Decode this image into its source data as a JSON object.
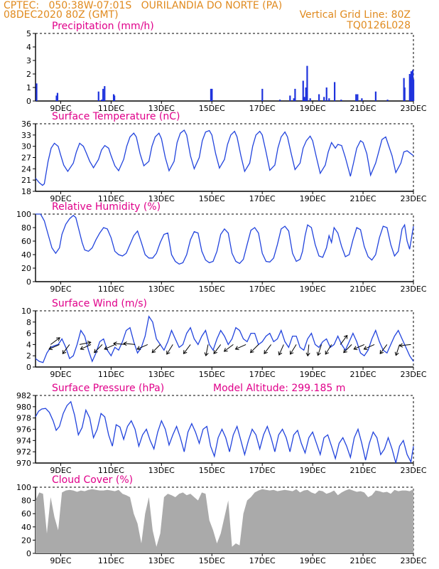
{
  "header": {
    "left_line1": "CPTEC:   050:38W-07:01S   OURILANDIA DO NORTE (PA)",
    "left_line2": "08DEC2020 80Z (GMT)",
    "right_line1": "Vertical Grid Line: 80Z",
    "right_line2": "TQ0126L028"
  },
  "colors": {
    "header": "#e08a1e",
    "title": "#e0008a",
    "series": "#2244dd",
    "bars": "#1f33dd",
    "cloud": "#aaaaaa",
    "wind_arrow": "#000000"
  },
  "x_axis": {
    "tick_labels": [
      "9DEC",
      "11DEC",
      "13DEC",
      "15DEC",
      "17DEC",
      "19DEC",
      "21DEC",
      "23DEC"
    ],
    "tick_days": [
      9,
      11,
      13,
      15,
      17,
      19,
      21,
      23
    ],
    "range_days": [
      8.0,
      23.0
    ]
  },
  "chart_data": [
    {
      "type": "bar",
      "title": "Precipitation (mm/h)",
      "ylim": [
        0,
        5
      ],
      "yticks": [
        0,
        1,
        2,
        3,
        4,
        5
      ],
      "x": [
        8.04,
        8.83,
        8.87,
        10.5,
        10.62,
        10.68,
        10.74,
        11.1,
        11.13,
        14.96,
        15.0,
        17.0,
        17.7,
        18.1,
        18.25,
        18.3,
        18.62,
        18.67,
        18.73,
        18.78,
        18.9,
        19.25,
        19.45,
        19.55,
        19.65,
        19.87,
        20.13,
        20.72,
        20.78,
        20.95,
        21.5,
        21.97,
        22.62,
        22.65,
        22.85,
        22.88,
        22.91,
        22.94,
        22.97,
        23.0
      ],
      "values": [
        1.3,
        0.4,
        0.6,
        0.7,
        0.1,
        0.9,
        1.1,
        0.5,
        0.4,
        0.9,
        0.9,
        0.9,
        0.1,
        0.4,
        0.2,
        0.9,
        1.5,
        0.3,
        1.0,
        2.6,
        0.2,
        0.5,
        0.3,
        1.0,
        0.2,
        1.4,
        0.1,
        0.5,
        0.5,
        0.2,
        0.7,
        0.1,
        1.7,
        1.0,
        2.0,
        1.8,
        2.2,
        1.9,
        2.3,
        1.6
      ]
    },
    {
      "type": "line",
      "title": "Surface Temperature (nC)",
      "ylim": [
        18,
        36
      ],
      "yticks": [
        18,
        21,
        24,
        27,
        30,
        33,
        36
      ],
      "x": [
        8.0,
        8.15,
        8.28,
        8.35,
        8.5,
        8.62,
        8.75,
        8.9,
        9.0,
        9.12,
        9.28,
        9.5,
        9.62,
        9.75,
        9.9,
        10.0,
        10.15,
        10.3,
        10.5,
        10.62,
        10.75,
        10.9,
        11.0,
        11.15,
        11.3,
        11.5,
        11.62,
        11.75,
        11.9,
        12.0,
        12.15,
        12.3,
        12.5,
        12.62,
        12.75,
        12.9,
        13.0,
        13.15,
        13.3,
        13.5,
        13.62,
        13.75,
        13.9,
        14.0,
        14.15,
        14.3,
        14.5,
        14.62,
        14.75,
        14.9,
        15.0,
        15.15,
        15.3,
        15.5,
        15.62,
        15.75,
        15.9,
        16.0,
        16.15,
        16.3,
        16.5,
        16.62,
        16.75,
        16.9,
        17.0,
        17.15,
        17.3,
        17.5,
        17.62,
        17.75,
        17.9,
        18.0,
        18.15,
        18.3,
        18.5,
        18.62,
        18.75,
        18.9,
        19.0,
        19.15,
        19.3,
        19.5,
        19.62,
        19.75,
        19.9,
        20.0,
        20.15,
        20.3,
        20.5,
        20.62,
        20.75,
        20.9,
        21.0,
        21.15,
        21.3,
        21.5,
        21.62,
        21.75,
        21.9,
        22.0,
        22.15,
        22.3,
        22.5,
        22.62,
        22.75,
        22.9,
        23.0
      ],
      "values": [
        21.5,
        20.3,
        19.6,
        20.0,
        26.0,
        29.5,
        30.8,
        30.0,
        27.6,
        25.0,
        23.3,
        25.5,
        28.5,
        30.8,
        30.0,
        28.5,
        26.0,
        24.3,
        26.5,
        29.0,
        30.2,
        29.5,
        27.5,
        24.8,
        23.5,
        26.5,
        30.0,
        32.5,
        33.5,
        32.5,
        28.0,
        24.8,
        26.0,
        30.0,
        32.5,
        33.5,
        32.0,
        27.0,
        23.5,
        26.0,
        31.0,
        33.5,
        34.3,
        33.0,
        27.5,
        24.0,
        27.0,
        31.5,
        33.8,
        34.2,
        33.0,
        28.0,
        24.2,
        26.5,
        30.5,
        33.0,
        34.0,
        32.5,
        27.5,
        23.3,
        25.5,
        30.0,
        33.0,
        34.0,
        33.0,
        28.5,
        23.6,
        25.0,
        29.5,
        32.5,
        33.8,
        32.5,
        28.0,
        23.8,
        25.5,
        29.5,
        31.5,
        32.7,
        31.5,
        27.0,
        22.8,
        25.0,
        28.5,
        31.0,
        29.5,
        30.5,
        30.2,
        27.0,
        22.0,
        25.5,
        29.5,
        31.5,
        31.0,
        28.0,
        22.3,
        25.5,
        28.5,
        31.8,
        32.5,
        30.5,
        27.5,
        23.0,
        25.5,
        28.5,
        28.8,
        28.0,
        27.5
      ]
    },
    {
      "type": "line",
      "title": "Relative Humidity (%)",
      "ylim": [
        0,
        100
      ],
      "yticks": [
        0,
        20,
        40,
        60,
        80,
        100
      ],
      "x": [
        8.0,
        8.1,
        8.2,
        8.35,
        8.5,
        8.65,
        8.8,
        8.95,
        9.05,
        9.2,
        9.35,
        9.5,
        9.6,
        9.7,
        9.85,
        9.95,
        10.1,
        10.25,
        10.4,
        10.55,
        10.7,
        10.85,
        11.0,
        11.15,
        11.3,
        11.45,
        11.6,
        11.75,
        11.9,
        12.05,
        12.2,
        12.35,
        12.5,
        12.65,
        12.8,
        12.95,
        13.1,
        13.25,
        13.4,
        13.55,
        13.7,
        13.85,
        14.0,
        14.15,
        14.3,
        14.45,
        14.6,
        14.75,
        14.9,
        15.05,
        15.2,
        15.35,
        15.5,
        15.65,
        15.8,
        15.95,
        16.1,
        16.25,
        16.4,
        16.55,
        16.7,
        16.85,
        17.0,
        17.15,
        17.3,
        17.45,
        17.6,
        17.75,
        17.9,
        18.05,
        18.2,
        18.35,
        18.5,
        18.6,
        18.7,
        18.8,
        18.95,
        19.1,
        19.25,
        19.4,
        19.55,
        19.65,
        19.75,
        19.85,
        20.0,
        20.15,
        20.3,
        20.45,
        20.6,
        20.75,
        20.9,
        21.05,
        21.2,
        21.35,
        21.5,
        21.65,
        21.8,
        21.95,
        22.1,
        22.25,
        22.4,
        22.55,
        22.65,
        22.75,
        22.85,
        23.0
      ],
      "values": [
        100,
        100,
        100,
        90,
        70,
        50,
        42,
        50,
        70,
        85,
        93,
        98,
        95,
        80,
        58,
        47,
        45,
        50,
        62,
        72,
        80,
        78,
        65,
        45,
        40,
        38,
        42,
        55,
        68,
        75,
        58,
        40,
        35,
        35,
        42,
        58,
        70,
        72,
        40,
        30,
        26,
        28,
        40,
        62,
        74,
        72,
        45,
        32,
        28,
        30,
        45,
        70,
        78,
        72,
        42,
        30,
        27,
        33,
        55,
        76,
        80,
        72,
        42,
        30,
        29,
        35,
        55,
        78,
        82,
        75,
        42,
        30,
        33,
        45,
        68,
        84,
        80,
        55,
        38,
        36,
        50,
        68,
        58,
        80,
        72,
        52,
        37,
        40,
        62,
        80,
        77,
        52,
        37,
        32,
        40,
        65,
        82,
        80,
        55,
        38,
        45,
        78,
        84,
        60,
        48,
        82
      ]
    },
    {
      "type": "line",
      "title": "Surface Wind (m/s)",
      "ylim": [
        0,
        10
      ],
      "yticks": [
        0,
        2,
        4,
        6,
        8,
        10
      ],
      "x": [
        8.0,
        8.15,
        8.3,
        8.45,
        8.6,
        8.75,
        8.9,
        9.05,
        9.2,
        9.35,
        9.5,
        9.65,
        9.8,
        9.95,
        10.1,
        10.25,
        10.4,
        10.55,
        10.7,
        10.85,
        11.0,
        11.15,
        11.3,
        11.45,
        11.6,
        11.75,
        11.9,
        12.05,
        12.2,
        12.35,
        12.5,
        12.65,
        12.8,
        12.95,
        13.1,
        13.25,
        13.4,
        13.55,
        13.7,
        13.85,
        14.0,
        14.15,
        14.3,
        14.45,
        14.6,
        14.75,
        14.9,
        15.05,
        15.2,
        15.35,
        15.5,
        15.65,
        15.8,
        15.95,
        16.1,
        16.25,
        16.4,
        16.55,
        16.7,
        16.85,
        17.0,
        17.15,
        17.3,
        17.45,
        17.6,
        17.75,
        17.9,
        18.05,
        18.2,
        18.35,
        18.5,
        18.65,
        18.8,
        18.95,
        19.1,
        19.25,
        19.4,
        19.55,
        19.7,
        19.85,
        20.0,
        20.15,
        20.3,
        20.45,
        20.6,
        20.75,
        20.9,
        21.05,
        21.2,
        21.35,
        21.5,
        21.65,
        21.8,
        21.95,
        22.1,
        22.25,
        22.4,
        22.55,
        22.7,
        22.85,
        23.0
      ],
      "values": [
        1.5,
        1.0,
        0.8,
        2.5,
        3.5,
        3.8,
        4.0,
        5.0,
        3.5,
        1.5,
        2.0,
        4.0,
        6.5,
        5.5,
        3.0,
        1.0,
        2.5,
        4.5,
        5.0,
        3.0,
        2.0,
        3.5,
        3.0,
        4.5,
        6.5,
        7.0,
        4.5,
        2.5,
        3.5,
        5.5,
        9.0,
        8.0,
        5.0,
        4.0,
        3.0,
        4.5,
        6.5,
        5.0,
        3.5,
        4.0,
        6.0,
        7.0,
        5.0,
        4.0,
        5.5,
        6.5,
        4.0,
        3.0,
        5.0,
        6.5,
        5.5,
        4.0,
        5.0,
        7.0,
        6.5,
        5.0,
        4.5,
        6.0,
        6.0,
        4.0,
        4.5,
        5.5,
        6.0,
        4.5,
        5.0,
        6.5,
        4.5,
        3.5,
        5.5,
        5.5,
        3.5,
        3.0,
        5.0,
        6.0,
        4.0,
        3.5,
        4.5,
        5.0,
        3.5,
        4.0,
        5.5,
        4.0,
        3.0,
        4.5,
        6.0,
        4.5,
        2.5,
        2.0,
        3.0,
        5.0,
        6.5,
        4.5,
        3.0,
        2.5,
        4.0,
        5.5,
        6.5,
        5.0,
        3.5,
        2.0,
        1.0
      ]
    },
    {
      "type": "line",
      "title": "Surface Pressure (hPa)",
      "annotation": "Model Altitude: 299.185 m",
      "ylim": [
        970,
        982
      ],
      "yticks": [
        970,
        972,
        974,
        976,
        978,
        980,
        982
      ],
      "x": [
        8.0,
        8.12,
        8.25,
        8.4,
        8.55,
        8.7,
        8.82,
        8.95,
        9.1,
        9.25,
        9.4,
        9.55,
        9.7,
        9.85,
        10.0,
        10.15,
        10.3,
        10.45,
        10.6,
        10.75,
        10.9,
        11.05,
        11.2,
        11.35,
        11.5,
        11.65,
        11.8,
        11.95,
        12.1,
        12.25,
        12.4,
        12.55,
        12.7,
        12.85,
        13.0,
        13.15,
        13.3,
        13.45,
        13.6,
        13.75,
        13.9,
        14.05,
        14.2,
        14.35,
        14.5,
        14.65,
        14.8,
        14.95,
        15.1,
        15.25,
        15.4,
        15.55,
        15.7,
        15.85,
        16.0,
        16.15,
        16.3,
        16.45,
        16.6,
        16.75,
        16.9,
        17.05,
        17.2,
        17.35,
        17.5,
        17.65,
        17.8,
        17.95,
        18.1,
        18.25,
        18.4,
        18.55,
        18.7,
        18.85,
        19.0,
        19.15,
        19.3,
        19.45,
        19.6,
        19.75,
        19.9,
        20.05,
        20.2,
        20.35,
        20.5,
        20.65,
        20.8,
        20.95,
        21.1,
        21.25,
        21.4,
        21.55,
        21.7,
        21.85,
        22.0,
        22.15,
        22.3,
        22.45,
        22.6,
        22.75,
        22.9,
        23.0
      ],
      "values": [
        978.2,
        979.2,
        979.6,
        979.7,
        979.0,
        977.5,
        975.8,
        976.5,
        978.8,
        980.2,
        980.9,
        978.5,
        975.0,
        976.3,
        979.4,
        978.0,
        974.5,
        976.0,
        978.8,
        978.2,
        975.0,
        973.0,
        976.8,
        976.4,
        974.2,
        976.5,
        977.5,
        976.0,
        973.0,
        975.0,
        976.0,
        974.0,
        972.5,
        975.5,
        977.5,
        976.0,
        973.2,
        975.0,
        976.5,
        974.5,
        972.0,
        975.5,
        977.0,
        975.5,
        973.5,
        976.0,
        976.5,
        973.0,
        971.2,
        974.5,
        976.0,
        974.5,
        972.0,
        975.0,
        976.5,
        974.0,
        971.5,
        974.0,
        976.0,
        975.0,
        972.5,
        975.0,
        976.5,
        974.5,
        972.0,
        975.0,
        976.0,
        974.5,
        972.0,
        975.0,
        975.8,
        973.5,
        971.8,
        974.5,
        975.5,
        973.5,
        971.5,
        974.5,
        975.0,
        973.0,
        970.8,
        973.5,
        974.5,
        973.0,
        971.0,
        974.5,
        976.0,
        973.5,
        970.5,
        973.5,
        975.5,
        974.5,
        971.5,
        972.5,
        974.5,
        972.5,
        970.0,
        973.0,
        974.0,
        971.5,
        970.2,
        973.0
      ]
    },
    {
      "type": "area",
      "title": "Cloud Cover (%)",
      "ylim": [
        0,
        100
      ],
      "yticks": [
        0,
        20,
        40,
        60,
        80,
        100
      ],
      "x": [
        8.0,
        8.15,
        8.3,
        8.45,
        8.6,
        8.75,
        8.9,
        9.05,
        9.2,
        9.35,
        9.5,
        9.65,
        9.8,
        9.95,
        10.1,
        10.25,
        10.4,
        10.55,
        10.7,
        10.85,
        11.0,
        11.15,
        11.3,
        11.45,
        11.6,
        11.75,
        11.9,
        12.05,
        12.2,
        12.35,
        12.5,
        12.65,
        12.8,
        12.95,
        13.1,
        13.25,
        13.4,
        13.55,
        13.7,
        13.85,
        14.0,
        14.15,
        14.3,
        14.45,
        14.6,
        14.75,
        14.9,
        15.05,
        15.2,
        15.35,
        15.5,
        15.65,
        15.8,
        15.95,
        16.1,
        16.25,
        16.4,
        16.55,
        16.7,
        16.85,
        17.0,
        17.15,
        17.3,
        17.45,
        17.6,
        17.75,
        17.9,
        18.05,
        18.2,
        18.35,
        18.5,
        18.65,
        18.8,
        18.95,
        19.1,
        19.25,
        19.4,
        19.55,
        19.7,
        19.85,
        20.0,
        20.15,
        20.3,
        20.45,
        20.6,
        20.75,
        20.9,
        21.05,
        21.2,
        21.35,
        21.5,
        21.65,
        21.8,
        21.95,
        22.1,
        22.25,
        22.4,
        22.55,
        22.7,
        22.85,
        23.0
      ],
      "values": [
        80,
        92,
        90,
        30,
        85,
        55,
        35,
        92,
        95,
        96,
        95,
        93,
        95,
        94,
        96,
        97,
        96,
        95,
        95,
        96,
        95,
        94,
        96,
        90,
        88,
        85,
        60,
        45,
        15,
        60,
        85,
        35,
        10,
        30,
        85,
        90,
        88,
        85,
        90,
        92,
        88,
        90,
        85,
        80,
        92,
        90,
        50,
        35,
        15,
        30,
        55,
        80,
        10,
        15,
        12,
        60,
        80,
        85,
        92,
        95,
        97,
        96,
        95,
        96,
        94,
        95,
        96,
        95,
        94,
        97,
        92,
        95,
        96,
        92,
        90,
        95,
        94,
        90,
        92,
        95,
        88,
        92,
        95,
        97,
        95,
        93,
        94,
        92,
        85,
        88,
        95,
        94,
        92,
        93,
        90,
        96,
        94,
        95,
        95,
        94,
        97
      ]
    }
  ],
  "wind_vectors": {
    "x": [
      8.6,
      8.95,
      9.35,
      9.75,
      10.2,
      10.65,
      11.15,
      11.55,
      11.95,
      12.45,
      12.95,
      13.45,
      14.15,
      14.85,
      15.35,
      15.85,
      16.35,
      16.85,
      17.35,
      17.85,
      18.35,
      18.85,
      19.35,
      19.75,
      20.1,
      20.55,
      21.05,
      21.45,
      21.95,
      22.45,
      22.9
    ],
    "u": [
      0.8,
      -0.9,
      -0.6,
      1.0,
      -0.9,
      -0.7,
      -0.9,
      -1.0,
      -1.0,
      -0.9,
      -0.7,
      -0.5,
      -0.6,
      -0.2,
      -0.6,
      -0.8,
      -0.9,
      -0.7,
      -0.6,
      -0.4,
      -0.5,
      -0.1,
      -0.3,
      -0.5,
      0.6,
      -0.7,
      -0.9,
      -0.9,
      -0.6,
      -0.3,
      -1.0
    ],
    "v": [
      0.6,
      -0.4,
      -0.8,
      0.2,
      -0.4,
      -0.7,
      -0.4,
      0.1,
      0.1,
      -0.4,
      -0.7,
      -0.8,
      -0.8,
      -1.0,
      -0.8,
      -0.6,
      -0.4,
      -0.7,
      -0.8,
      -0.9,
      -0.8,
      -1.0,
      -0.9,
      -0.8,
      0.8,
      -0.7,
      -0.4,
      -0.4,
      -0.8,
      -0.9,
      -0.1
    ]
  }
}
